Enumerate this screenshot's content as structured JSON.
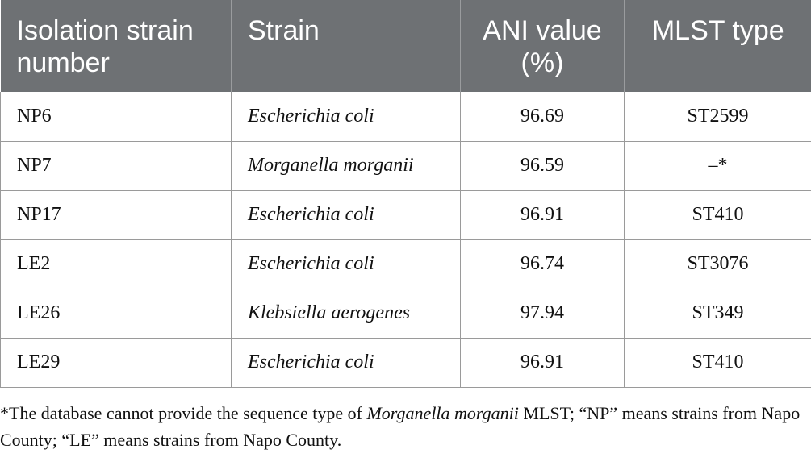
{
  "table": {
    "headers": [
      "Isolation strain number",
      "Strain",
      "ANI value (%)",
      "MLST type"
    ],
    "rows": [
      {
        "id": "NP6",
        "strain": "Escherichia coli",
        "ani": "96.69",
        "mlst": "ST2599"
      },
      {
        "id": "NP7",
        "strain": "Morganella morganii",
        "ani": "96.59",
        "mlst": "–*"
      },
      {
        "id": "NP17",
        "strain": "Escherichia coli",
        "ani": "96.91",
        "mlst": "ST410"
      },
      {
        "id": "LE2",
        "strain": "Escherichia coli",
        "ani": "96.74",
        "mlst": "ST3076"
      },
      {
        "id": "LE26",
        "strain": "Klebsiella aerogenes",
        "ani": "97.94",
        "mlst": "ST349"
      },
      {
        "id": "LE29",
        "strain": "Escherichia coli",
        "ani": "96.91",
        "mlst": "ST410"
      }
    ]
  },
  "footnote": {
    "part1": "*The database cannot provide the sequence type of ",
    "italic": "Morganella morganii",
    "part2": " MLST; “NP” means strains from Napo County; “LE” means strains from Napo County."
  }
}
